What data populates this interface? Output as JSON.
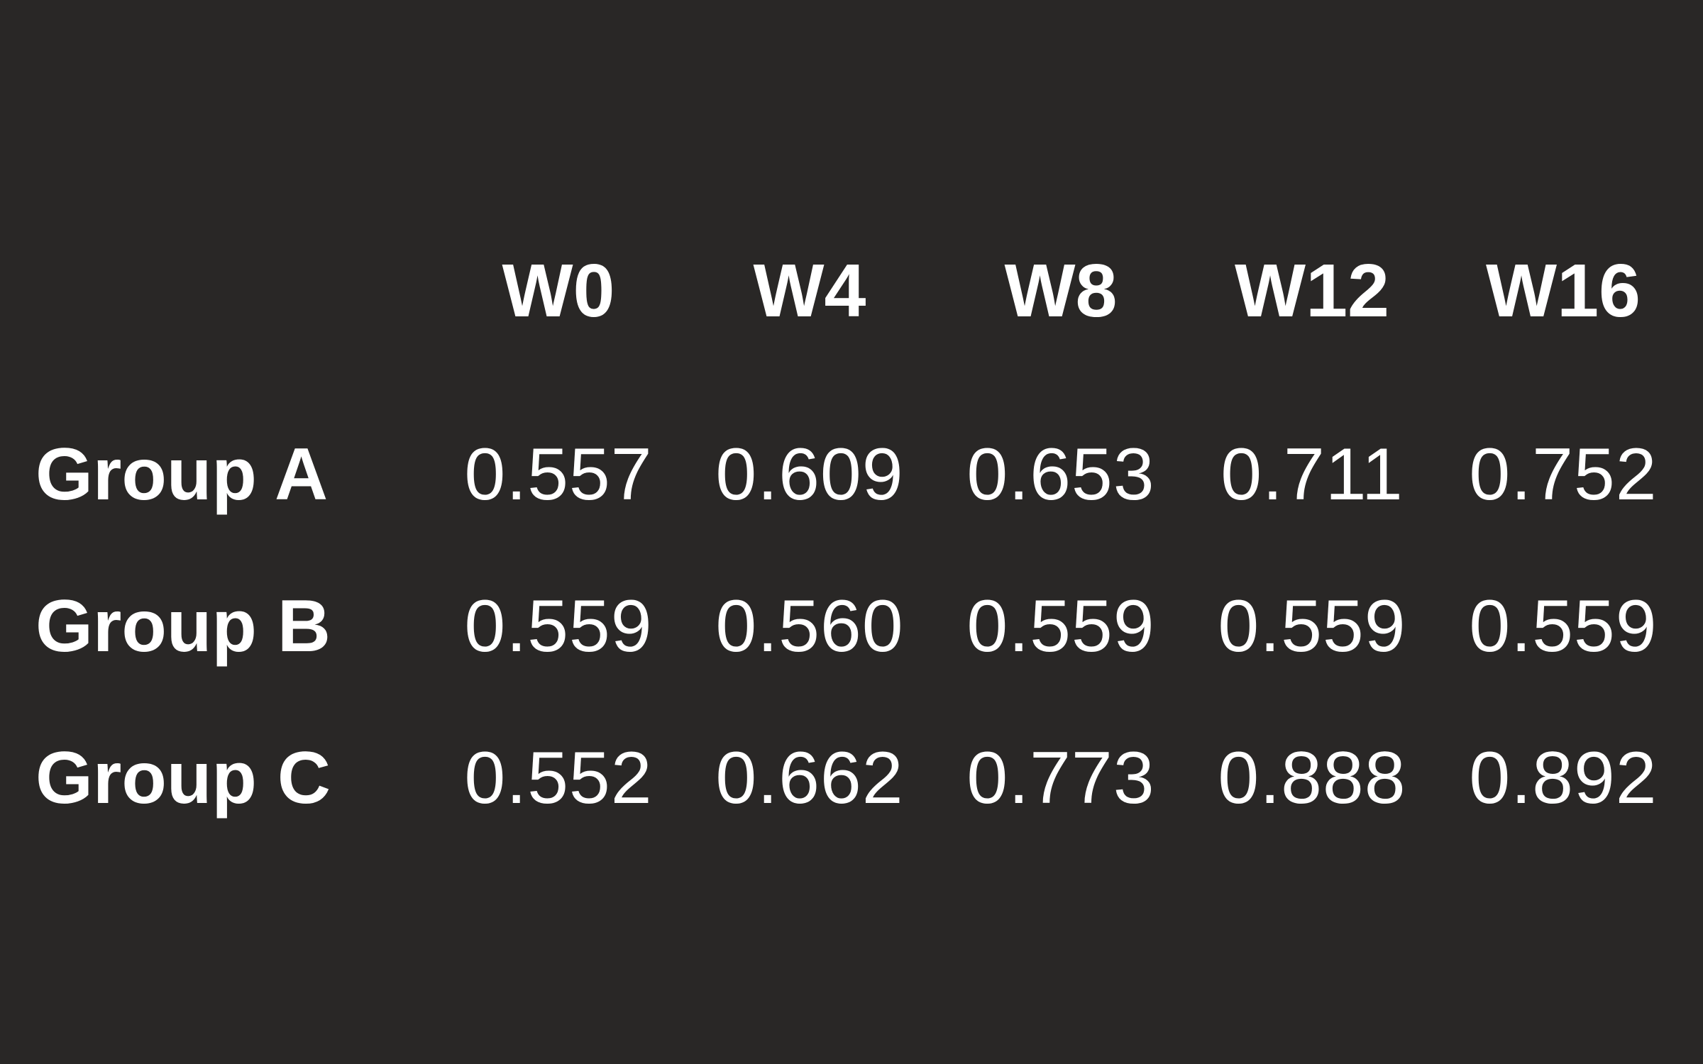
{
  "background_color": "#292726",
  "text_color": "#ffffff",
  "table": {
    "columns": [
      "W0",
      "W4",
      "W8",
      "W12",
      "W16"
    ],
    "rows": [
      {
        "label": "Group A",
        "values": [
          "0.557",
          "0.609",
          "0.653",
          "0.711",
          "0.752"
        ]
      },
      {
        "label": "Group B",
        "values": [
          "0.559",
          "0.560",
          "0.559",
          "0.559",
          "0.559"
        ]
      },
      {
        "label": "Group C",
        "values": [
          "0.552",
          "0.662",
          "0.773",
          "0.888",
          "0.892"
        ]
      }
    ]
  },
  "chart_data": {
    "type": "table",
    "title": "",
    "xlabel": "",
    "ylabel": "",
    "categories": [
      "W0",
      "W4",
      "W8",
      "W12",
      "W16"
    ],
    "series": [
      {
        "name": "Group A",
        "values": [
          0.557,
          0.609,
          0.653,
          0.711,
          0.752
        ]
      },
      {
        "name": "Group B",
        "values": [
          0.559,
          0.56,
          0.559,
          0.559,
          0.559
        ]
      },
      {
        "name": "Group C",
        "values": [
          0.552,
          0.662,
          0.773,
          0.888,
          0.892
        ]
      }
    ]
  }
}
